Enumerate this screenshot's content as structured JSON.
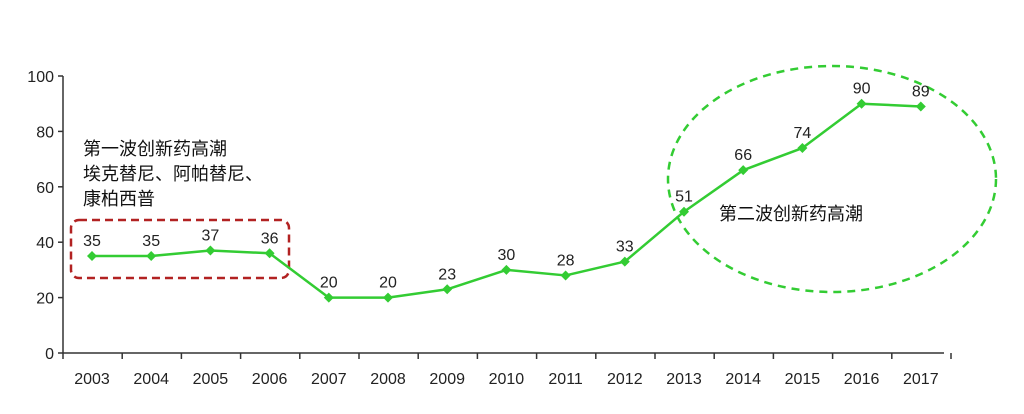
{
  "chart_data": {
    "type": "line",
    "categories": [
      "2003",
      "2004",
      "2005",
      "2006",
      "2007",
      "2008",
      "2009",
      "2010",
      "2011",
      "2012",
      "2013",
      "2014",
      "2015",
      "2016",
      "2017"
    ],
    "series": [
      {
        "values": [
          35,
          35,
          37,
          36,
          20,
          20,
          23,
          30,
          28,
          33,
          51,
          66,
          74,
          90,
          89
        ]
      }
    ],
    "yticks": [
      "0",
      "20",
      "40",
      "60",
      "80",
      "100"
    ],
    "ylim": [
      0,
      100
    ],
    "grid": false,
    "colors": {
      "line": "#33cc33",
      "marker": "#33cc33",
      "box_dashed": "#b22222",
      "circle_dashed": "#33cc33",
      "axis": "#333333"
    },
    "annotations": {
      "first_wave": {
        "lines": [
          "第一波创新药高潮",
          "埃克替尼、阿帕替尼、",
          "康柏西普"
        ]
      },
      "second_wave": {
        "text": "第二波创新药高潮"
      }
    }
  }
}
